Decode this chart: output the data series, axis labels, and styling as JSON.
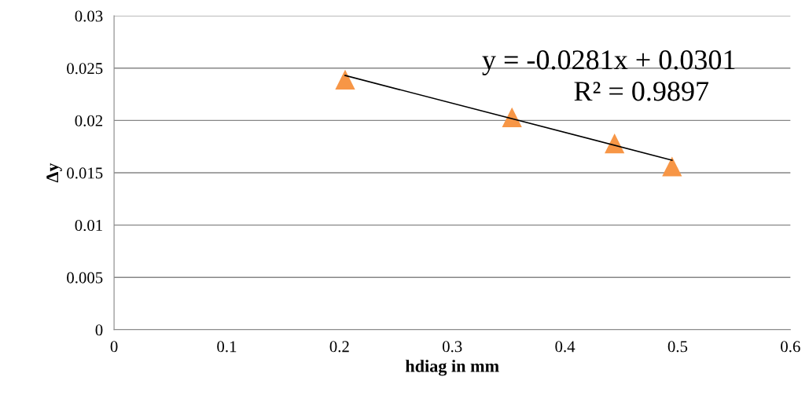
{
  "chart_data": {
    "type": "scatter",
    "xlabel": "hdiag in mm",
    "ylabel": "Δy",
    "x": [
      0.205,
      0.353,
      0.444,
      0.495
    ],
    "series": [
      {
        "color": "#f79646",
        "marker": "triangle",
        "values": [
          0.0239,
          0.0203,
          0.0178,
          0.0156
        ]
      },
      {
        "type": "line",
        "color": "#000000",
        "marker": "none",
        "x": [
          0.205,
          0.495
        ],
        "values": [
          0.0243,
          0.0162
        ]
      }
    ],
    "annotations": [
      "y = -0.0281x + 0.0301",
      "R² = 0.9897"
    ],
    "xlim": [
      0,
      0.6
    ],
    "xticks": [
      0,
      0.1,
      0.2,
      0.3,
      0.4,
      0.5,
      0.6
    ],
    "ylim": [
      0,
      0.03
    ],
    "yticks": [
      0,
      0.005,
      0.01,
      0.015,
      0.02,
      0.025,
      0.03
    ],
    "grid": "y",
    "legend": false
  }
}
